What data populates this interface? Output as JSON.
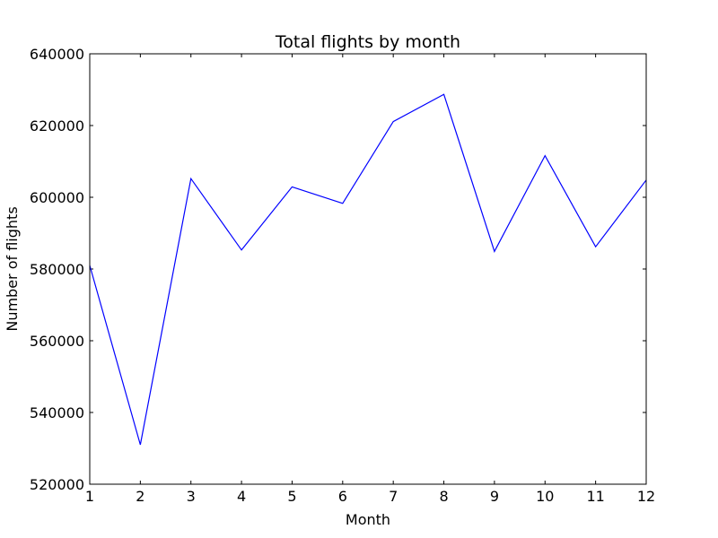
{
  "chart_data": {
    "type": "line",
    "title": "Total flights by month",
    "xlabel": "Month",
    "ylabel": "Number of flights",
    "xlim": [
      1,
      12
    ],
    "ylim": [
      520000,
      640000
    ],
    "grid": false,
    "x_ticks": [
      1,
      2,
      3,
      4,
      5,
      6,
      7,
      8,
      9,
      10,
      11,
      12
    ],
    "y_ticks": [
      520000,
      540000,
      560000,
      580000,
      600000,
      620000,
      640000
    ],
    "series": [
      {
        "color": "#0000ff",
        "x": [
          1,
          2,
          3,
          4,
          5,
          6,
          7,
          8,
          9,
          10,
          11,
          12
        ],
        "values": [
          581000,
          531000,
          605200,
          585300,
          602900,
          598300,
          621100,
          628700,
          584900,
          611600,
          586200,
          604800
        ]
      }
    ]
  }
}
